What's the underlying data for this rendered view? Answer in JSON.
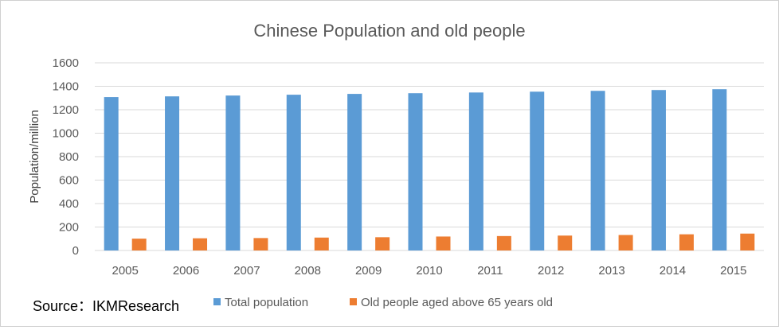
{
  "chart_data": {
    "type": "bar",
    "title": "Chinese Population and old people",
    "ylabel": "Population/million",
    "xlabel": "",
    "ylim": [
      0,
      1600
    ],
    "yticks": [
      0,
      200,
      400,
      600,
      800,
      1000,
      1200,
      1400,
      1600
    ],
    "grid": true,
    "legend_position": "bottom",
    "categories": [
      "2005",
      "2006",
      "2007",
      "2008",
      "2009",
      "2010",
      "2011",
      "2012",
      "2013",
      "2014",
      "2015"
    ],
    "series": [
      {
        "name": "Total population",
        "color": "#5B9BD5",
        "values": [
          1308,
          1314,
          1321,
          1328,
          1335,
          1341,
          1347,
          1354,
          1361,
          1368,
          1375
        ]
      },
      {
        "name": "Old people aged above 65 years old",
        "color": "#ED7D31",
        "values": [
          101,
          104,
          106,
          110,
          113,
          119,
          123,
          127,
          132,
          138,
          144
        ]
      }
    ],
    "source": "Source：IKMResearch"
  }
}
